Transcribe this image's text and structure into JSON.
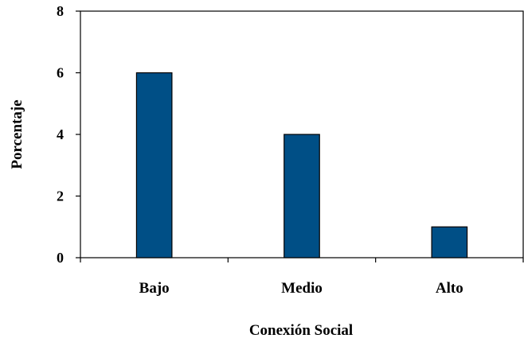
{
  "chart_data": {
    "type": "bar",
    "categories": [
      "Bajo",
      "Medio",
      "Alto"
    ],
    "values": [
      6,
      4,
      1
    ],
    "title": "",
    "xlabel": "Conexión Social",
    "ylabel": "Porcentaje",
    "ylim": [
      0,
      8
    ],
    "yticks": [
      0,
      2,
      4,
      6,
      8
    ],
    "grid": false,
    "legend": "none",
    "colors": {
      "bar_fill": "#004f86",
      "bar_stroke": "#000000",
      "axis": "#000000"
    }
  }
}
